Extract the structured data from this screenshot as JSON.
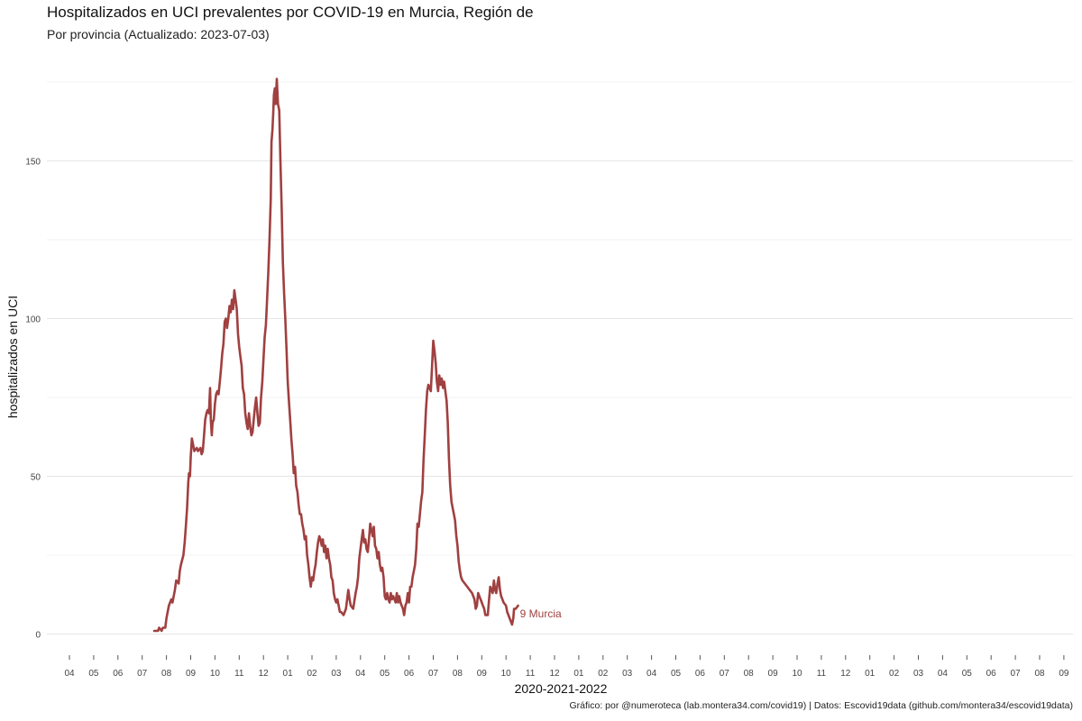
{
  "chart_data": {
    "type": "line",
    "title": "Hospitalizados en UCI prevalentes por COVID-19 en Murcia, Región de",
    "subtitle": "Por provincia  (Actualizado: 2023-07-03)",
    "xlabel": "2020-2021-2022",
    "ylabel": "hospitalizados en UCI",
    "caption": "Gráfico: por @numeroteca (lab.montera34.com/covid19) | Datos: Escovid19data (github.com/montera34/escovid19data)",
    "ylim": [
      -8,
      176
    ],
    "y_ticks": [
      0,
      50,
      100,
      150
    ],
    "x_ticks": [
      "04",
      "05",
      "06",
      "07",
      "08",
      "09",
      "10",
      "11",
      "12",
      "01",
      "02",
      "03",
      "04",
      "05",
      "06",
      "07",
      "08",
      "09",
      "10",
      "11",
      "12",
      "01",
      "02",
      "03",
      "04",
      "05",
      "06",
      "07",
      "08",
      "09",
      "10",
      "11",
      "12",
      "01",
      "02",
      "03",
      "04",
      "05",
      "06",
      "07",
      "08",
      "09"
    ],
    "grid": true,
    "x_unit": "month index since 2020-04 (0 = April 2020)",
    "series": [
      {
        "name": "Murcia",
        "end_label": "9 Murcia",
        "color": "#a04040",
        "points": [
          [
            3.5,
            1
          ],
          [
            3.65,
            1
          ],
          [
            3.7,
            2
          ],
          [
            3.8,
            1
          ],
          [
            3.85,
            2
          ],
          [
            3.95,
            2
          ],
          [
            4.0,
            5
          ],
          [
            4.1,
            9
          ],
          [
            4.2,
            11
          ],
          [
            4.25,
            10
          ],
          [
            4.35,
            14
          ],
          [
            4.4,
            17
          ],
          [
            4.5,
            16
          ],
          [
            4.55,
            20
          ],
          [
            4.6,
            22
          ],
          [
            4.7,
            25
          ],
          [
            4.75,
            29
          ],
          [
            4.8,
            34
          ],
          [
            4.85,
            40
          ],
          [
            4.9,
            48
          ],
          [
            4.93,
            51
          ],
          [
            4.97,
            50
          ],
          [
            5.0,
            56
          ],
          [
            5.05,
            62
          ],
          [
            5.1,
            60
          ],
          [
            5.15,
            58
          ],
          [
            5.25,
            59
          ],
          [
            5.3,
            58
          ],
          [
            5.4,
            59
          ],
          [
            5.45,
            57
          ],
          [
            5.5,
            58
          ],
          [
            5.55,
            63
          ],
          [
            5.6,
            68
          ],
          [
            5.65,
            70
          ],
          [
            5.7,
            71
          ],
          [
            5.75,
            70
          ],
          [
            5.8,
            78
          ],
          [
            5.83,
            68
          ],
          [
            5.87,
            63
          ],
          [
            5.9,
            67
          ],
          [
            5.95,
            68
          ],
          [
            6.0,
            73
          ],
          [
            6.05,
            76
          ],
          [
            6.1,
            77
          ],
          [
            6.15,
            76
          ],
          [
            6.2,
            80
          ],
          [
            6.25,
            84
          ],
          [
            6.3,
            89
          ],
          [
            6.35,
            92
          ],
          [
            6.4,
            99
          ],
          [
            6.45,
            100
          ],
          [
            6.5,
            97
          ],
          [
            6.55,
            100
          ],
          [
            6.6,
            104
          ],
          [
            6.65,
            102
          ],
          [
            6.7,
            106
          ],
          [
            6.75,
            103
          ],
          [
            6.8,
            109
          ],
          [
            6.85,
            106
          ],
          [
            6.9,
            103
          ],
          [
            6.95,
            95
          ],
          [
            7.0,
            91
          ],
          [
            7.05,
            88
          ],
          [
            7.1,
            85
          ],
          [
            7.15,
            78
          ],
          [
            7.2,
            76
          ],
          [
            7.25,
            70
          ],
          [
            7.3,
            67
          ],
          [
            7.35,
            65
          ],
          [
            7.4,
            70
          ],
          [
            7.45,
            66
          ],
          [
            7.5,
            63
          ],
          [
            7.55,
            64
          ],
          [
            7.6,
            68
          ],
          [
            7.65,
            72
          ],
          [
            7.7,
            75
          ],
          [
            7.75,
            70
          ],
          [
            7.8,
            66
          ],
          [
            7.85,
            67
          ],
          [
            7.9,
            75
          ],
          [
            7.95,
            80
          ],
          [
            8.0,
            87
          ],
          [
            8.05,
            94
          ],
          [
            8.1,
            98
          ],
          [
            8.15,
            106
          ],
          [
            8.2,
            115
          ],
          [
            8.25,
            125
          ],
          [
            8.3,
            138
          ],
          [
            8.33,
            156
          ],
          [
            8.37,
            160
          ],
          [
            8.4,
            165
          ],
          [
            8.43,
            171
          ],
          [
            8.47,
            173
          ],
          [
            8.5,
            168
          ],
          [
            8.55,
            176
          ],
          [
            8.6,
            168
          ],
          [
            8.65,
            166
          ],
          [
            8.7,
            150
          ],
          [
            8.75,
            135
          ],
          [
            8.8,
            118
          ],
          [
            8.85,
            108
          ],
          [
            8.9,
            100
          ],
          [
            8.95,
            90
          ],
          [
            9.0,
            80
          ],
          [
            9.05,
            74
          ],
          [
            9.1,
            68
          ],
          [
            9.15,
            62
          ],
          [
            9.2,
            57
          ],
          [
            9.25,
            51
          ],
          [
            9.3,
            53
          ],
          [
            9.35,
            47
          ],
          [
            9.4,
            45
          ],
          [
            9.45,
            41
          ],
          [
            9.5,
            38
          ],
          [
            9.55,
            38
          ],
          [
            9.6,
            35
          ],
          [
            9.65,
            33
          ],
          [
            9.7,
            30
          ],
          [
            9.75,
            31
          ],
          [
            9.8,
            25
          ],
          [
            9.85,
            22
          ],
          [
            9.9,
            18
          ],
          [
            9.95,
            15
          ],
          [
            10.0,
            18
          ],
          [
            10.05,
            17
          ],
          [
            10.1,
            20
          ],
          [
            10.15,
            22
          ],
          [
            10.2,
            26
          ],
          [
            10.25,
            29
          ],
          [
            10.3,
            31
          ],
          [
            10.35,
            30
          ],
          [
            10.4,
            28
          ],
          [
            10.45,
            30
          ],
          [
            10.5,
            26
          ],
          [
            10.55,
            28
          ],
          [
            10.6,
            24
          ],
          [
            10.65,
            27
          ],
          [
            10.7,
            24
          ],
          [
            10.75,
            22
          ],
          [
            10.8,
            18
          ],
          [
            10.85,
            17
          ],
          [
            10.9,
            13
          ],
          [
            10.95,
            11
          ],
          [
            11.0,
            10
          ],
          [
            11.05,
            11
          ],
          [
            11.1,
            9
          ],
          [
            11.15,
            7
          ],
          [
            11.2,
            7
          ],
          [
            11.3,
            6
          ],
          [
            11.4,
            8
          ],
          [
            11.45,
            11
          ],
          [
            11.5,
            14
          ],
          [
            11.55,
            11
          ],
          [
            11.6,
            9
          ],
          [
            11.7,
            8
          ],
          [
            11.8,
            13
          ],
          [
            11.85,
            15
          ],
          [
            11.9,
            18
          ],
          [
            11.95,
            24
          ],
          [
            12.0,
            27
          ],
          [
            12.05,
            30
          ],
          [
            12.1,
            33
          ],
          [
            12.15,
            29
          ],
          [
            12.2,
            30
          ],
          [
            12.25,
            27
          ],
          [
            12.3,
            26
          ],
          [
            12.35,
            30
          ],
          [
            12.4,
            35
          ],
          [
            12.45,
            33
          ],
          [
            12.5,
            31
          ],
          [
            12.55,
            34
          ],
          [
            12.6,
            28
          ],
          [
            12.65,
            27
          ],
          [
            12.7,
            24
          ],
          [
            12.75,
            26
          ],
          [
            12.8,
            22
          ],
          [
            12.85,
            20
          ],
          [
            12.9,
            21
          ],
          [
            12.95,
            18
          ],
          [
            13.0,
            12
          ],
          [
            13.05,
            11
          ],
          [
            13.1,
            13
          ],
          [
            13.15,
            11
          ],
          [
            13.2,
            10
          ],
          [
            13.25,
            13
          ],
          [
            13.3,
            11
          ],
          [
            13.35,
            12
          ],
          [
            13.4,
            11
          ],
          [
            13.45,
            10
          ],
          [
            13.5,
            13
          ],
          [
            13.55,
            10
          ],
          [
            13.6,
            12
          ],
          [
            13.65,
            10
          ],
          [
            13.7,
            9
          ],
          [
            13.75,
            8
          ],
          [
            13.8,
            6
          ],
          [
            13.85,
            9
          ],
          [
            13.9,
            10
          ],
          [
            13.95,
            13
          ],
          [
            14.0,
            10
          ],
          [
            14.05,
            15
          ],
          [
            14.1,
            15
          ],
          [
            14.15,
            18
          ],
          [
            14.2,
            20
          ],
          [
            14.25,
            22
          ],
          [
            14.3,
            27
          ],
          [
            14.35,
            35
          ],
          [
            14.4,
            34
          ],
          [
            14.45,
            38
          ],
          [
            14.5,
            42
          ],
          [
            14.55,
            45
          ],
          [
            14.6,
            55
          ],
          [
            14.65,
            63
          ],
          [
            14.7,
            71
          ],
          [
            14.75,
            77
          ],
          [
            14.8,
            79
          ],
          [
            14.85,
            78
          ],
          [
            14.9,
            77
          ],
          [
            14.95,
            85
          ],
          [
            15.0,
            93
          ],
          [
            15.05,
            90
          ],
          [
            15.1,
            86
          ],
          [
            15.15,
            80
          ],
          [
            15.2,
            77
          ],
          [
            15.25,
            82
          ],
          [
            15.3,
            79
          ],
          [
            15.35,
            81
          ],
          [
            15.4,
            78
          ],
          [
            15.45,
            80
          ],
          [
            15.5,
            77
          ],
          [
            15.55,
            74
          ],
          [
            15.6,
            67
          ],
          [
            15.65,
            55
          ],
          [
            15.7,
            47
          ],
          [
            15.75,
            42
          ],
          [
            15.8,
            40
          ],
          [
            15.85,
            38
          ],
          [
            15.9,
            36
          ],
          [
            15.95,
            31
          ],
          [
            16.0,
            28
          ],
          [
            16.05,
            23
          ],
          [
            16.1,
            20
          ],
          [
            16.15,
            18
          ],
          [
            16.2,
            17
          ],
          [
            16.3,
            16
          ],
          [
            16.4,
            15
          ],
          [
            16.5,
            14
          ],
          [
            16.6,
            13
          ],
          [
            16.65,
            12
          ],
          [
            16.7,
            11
          ],
          [
            16.75,
            8
          ],
          [
            16.8,
            9
          ],
          [
            16.85,
            13
          ],
          [
            16.9,
            12
          ],
          [
            16.95,
            11
          ],
          [
            17.0,
            10
          ],
          [
            17.05,
            9
          ],
          [
            17.1,
            8
          ],
          [
            17.15,
            6
          ],
          [
            17.25,
            6
          ],
          [
            17.3,
            11
          ],
          [
            17.35,
            15
          ],
          [
            17.4,
            14
          ],
          [
            17.45,
            13
          ],
          [
            17.5,
            17
          ],
          [
            17.55,
            14
          ],
          [
            17.6,
            13
          ],
          [
            17.65,
            16
          ],
          [
            17.7,
            18
          ],
          [
            17.75,
            14
          ],
          [
            17.8,
            12
          ],
          [
            17.85,
            11
          ],
          [
            17.9,
            10
          ],
          [
            18.0,
            9
          ],
          [
            18.05,
            7
          ],
          [
            18.1,
            6
          ],
          [
            18.15,
            5
          ],
          [
            18.2,
            4
          ],
          [
            18.25,
            3
          ],
          [
            18.3,
            5
          ],
          [
            18.33,
            8
          ],
          [
            18.4,
            8
          ],
          [
            18.5,
            9
          ]
        ]
      }
    ]
  }
}
